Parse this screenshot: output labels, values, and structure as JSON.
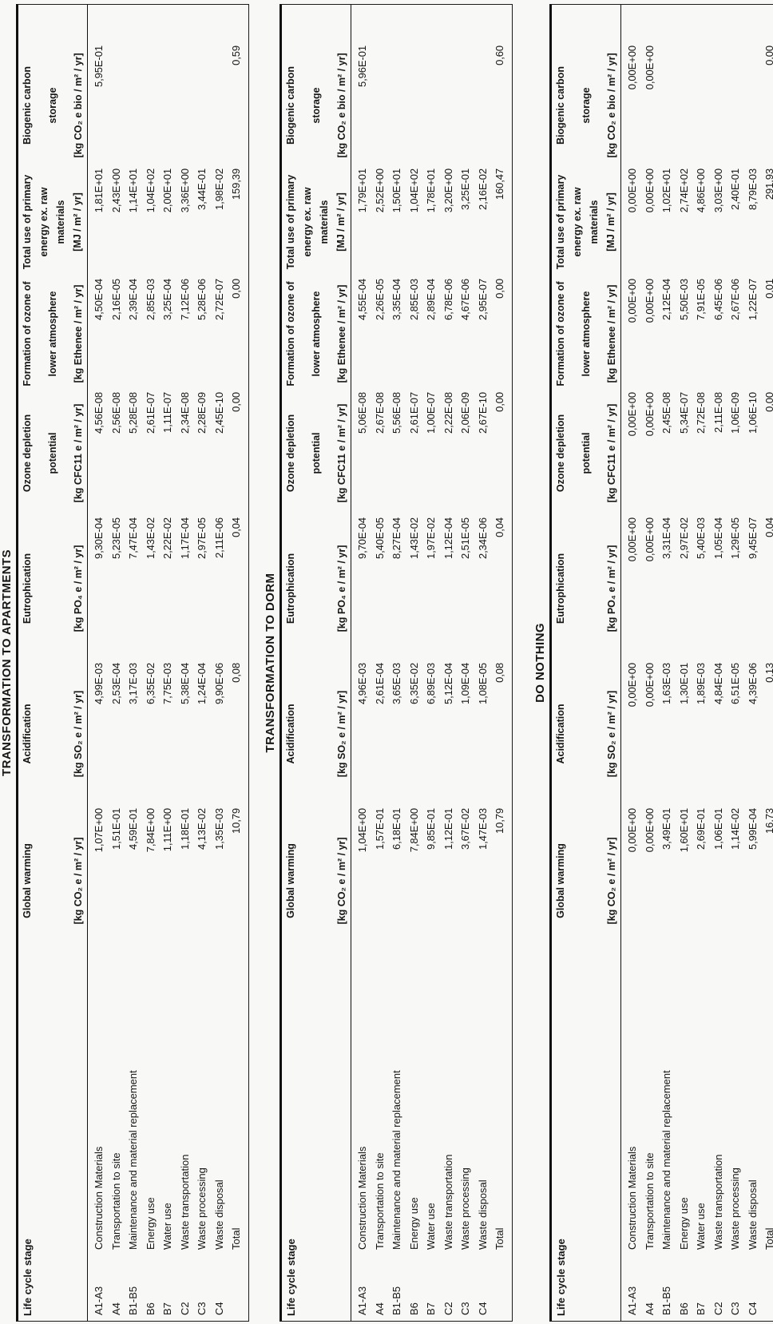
{
  "page": {
    "background": "#f8f8f6",
    "text_color": "#161616"
  },
  "columns": {
    "stage": "Life cycle stage",
    "impacts": [
      {
        "id": "global-warming",
        "lines": [
          "Global warming"
        ],
        "units": "[kg CO₂ e / m² / yr]"
      },
      {
        "id": "acidification",
        "lines": [
          "Acidification"
        ],
        "units": "[kg SO₂ e / m² / yr]"
      },
      {
        "id": "eutrophication",
        "lines": [
          "Eutrophication"
        ],
        "units": "[kg PO₄ e / m² / yr]"
      },
      {
        "id": "ozone-depletion",
        "lines": [
          "Ozone depletion",
          "potential"
        ],
        "units": "[kg CFC11 e / m² / yr]"
      },
      {
        "id": "ozone-formation",
        "lines": [
          "Formation of ozone of",
          "lower atmosphere"
        ],
        "units": "[kg Ethenee / m² / yr]"
      },
      {
        "id": "primary-energy",
        "lines": [
          "Total use of primary",
          "energy ex. raw",
          "materials"
        ],
        "units": "[MJ / m² / yr]"
      },
      {
        "id": "biogenic-carbon",
        "lines": [
          "Biogenic carbon",
          "storage"
        ],
        "units": "[kg CO₂ e bio / m² / yr]"
      }
    ]
  },
  "tables": [
    {
      "title": "TRANSFORMATION TO APARTMENTS",
      "rows": [
        {
          "code": "A1-A3",
          "label": "Construction Materials",
          "values": [
            "1,07E+00",
            "4,99E-03",
            "9,30E-04",
            "4,56E-08",
            "4,50E-04",
            "1,81E+01",
            "5,95E-01"
          ]
        },
        {
          "code": "A4",
          "label": "Transportation to site",
          "values": [
            "1,51E-01",
            "2,53E-04",
            "5,23E-05",
            "2,56E-08",
            "2,16E-05",
            "2,43E+00",
            ""
          ]
        },
        {
          "code": "B1-B5",
          "label": "Maintenance and material replacement",
          "values": [
            "4,59E-01",
            "3,17E-03",
            "7,47E-04",
            "5,28E-08",
            "2,39E-04",
            "1,14E+01",
            ""
          ]
        },
        {
          "code": "B6",
          "label": "Energy use",
          "values": [
            "7,84E+00",
            "6,35E-02",
            "1,43E-02",
            "2,61E-07",
            "2,85E-03",
            "1,04E+02",
            ""
          ]
        },
        {
          "code": "B7",
          "label": "Water use",
          "values": [
            "1,11E+00",
            "7,75E-03",
            "2,22E-02",
            "1,11E-07",
            "3,25E-04",
            "2,00E+01",
            ""
          ]
        },
        {
          "code": "C2",
          "label": "Waste transportation",
          "values": [
            "1,18E-01",
            "5,38E-04",
            "1,17E-04",
            "2,34E-08",
            "7,12E-06",
            "3,36E+00",
            ""
          ]
        },
        {
          "code": "C3",
          "label": "Waste processing",
          "values": [
            "4,13E-02",
            "1,24E-04",
            "2,97E-05",
            "2,28E-09",
            "5,28E-06",
            "3,44E-01",
            ""
          ]
        },
        {
          "code": "C4",
          "label": "Waste disposal",
          "values": [
            "1,35E-03",
            "9,90E-06",
            "2,11E-06",
            "2,45E-10",
            "2,72E-07",
            "1,98E-02",
            ""
          ]
        },
        {
          "code": "",
          "label": "Total",
          "values": [
            "10,79",
            "0,08",
            "0,04",
            "0,00",
            "0,00",
            "159,39",
            "0,59"
          ]
        }
      ]
    },
    {
      "title": "TRANSFORMATION TO DORM",
      "rows": [
        {
          "code": "A1-A3",
          "label": "Construction Materials",
          "values": [
            "1,04E+00",
            "4,96E-03",
            "9,70E-04",
            "5,06E-08",
            "4,55E-04",
            "1,79E+01",
            "5,96E-01"
          ]
        },
        {
          "code": "A4",
          "label": "Transportation to site",
          "values": [
            "1,57E-01",
            "2,61E-04",
            "5,40E-05",
            "2,67E-08",
            "2,26E-05",
            "2,52E+00",
            ""
          ]
        },
        {
          "code": "B1-B5",
          "label": "Maintenance and material replacement",
          "values": [
            "6,18E-01",
            "3,65E-03",
            "8,27E-04",
            "5,56E-08",
            "3,35E-04",
            "1,50E+01",
            ""
          ]
        },
        {
          "code": "B6",
          "label": "Energy use",
          "values": [
            "7,84E+00",
            "6,35E-02",
            "1,43E-02",
            "2,61E-07",
            "2,85E-03",
            "1,04E+02",
            ""
          ]
        },
        {
          "code": "B7",
          "label": "Water use",
          "values": [
            "9,85E-01",
            "6,89E-03",
            "1,97E-02",
            "1,00E-07",
            "2,89E-04",
            "1,78E+01",
            ""
          ]
        },
        {
          "code": "C2",
          "label": "Waste transportation",
          "values": [
            "1,12E-01",
            "5,12E-04",
            "1,12E-04",
            "2,22E-08",
            "6,78E-06",
            "3,20E+00",
            ""
          ]
        },
        {
          "code": "C3",
          "label": "Waste processing",
          "values": [
            "3,67E-02",
            "1,09E-04",
            "2,51E-05",
            "2,06E-09",
            "4,67E-06",
            "3,25E-01",
            ""
          ]
        },
        {
          "code": "C4",
          "label": "Waste disposal",
          "values": [
            "1,47E-03",
            "1,08E-05",
            "2,34E-06",
            "2,67E-10",
            "2,95E-07",
            "2,16E-02",
            ""
          ]
        },
        {
          "code": "",
          "label": "Total",
          "values": [
            "10,79",
            "0,08",
            "0,04",
            "0,00",
            "0,00",
            "160,47",
            "0,60"
          ]
        }
      ]
    },
    {
      "title": "DO NOTHING",
      "rows": [
        {
          "code": "A1-A3",
          "label": "Construction Materials",
          "values": [
            "0,00E+00",
            "0,00E+00",
            "0,00E+00",
            "0,00E+00",
            "0,00E+00",
            "0,00E+00",
            "0,00E+00"
          ]
        },
        {
          "code": "A4",
          "label": "Transportation to site",
          "values": [
            "0,00E+00",
            "0,00E+00",
            "0,00E+00",
            "0,00E+00",
            "0,00E+00",
            "0,00E+00",
            "0,00E+00"
          ]
        },
        {
          "code": "B1-B5",
          "label": "Maintenance and material replacement",
          "values": [
            "3,49E-01",
            "1,63E-03",
            "3,31E-04",
            "2,45E-08",
            "2,12E-04",
            "1,02E+01",
            ""
          ]
        },
        {
          "code": "B6",
          "label": "Energy use",
          "values": [
            "1,60E+01",
            "1,30E-01",
            "2,97E-02",
            "5,34E-07",
            "5,50E-03",
            "2,74E+02",
            ""
          ]
        },
        {
          "code": "B7",
          "label": "Water use",
          "values": [
            "2,69E-01",
            "1,89E-03",
            "5,40E-03",
            "2,72E-08",
            "7,91E-05",
            "4,86E+00",
            ""
          ]
        },
        {
          "code": "C2",
          "label": "Waste transportation",
          "values": [
            "1,06E-01",
            "4,84E-04",
            "1,05E-04",
            "2,11E-08",
            "6,45E-06",
            "3,03E+00",
            ""
          ]
        },
        {
          "code": "C3",
          "label": "Waste processing",
          "values": [
            "1,14E-02",
            "6,51E-05",
            "1,29E-05",
            "1,06E-09",
            "2,67E-06",
            "2,40E-01",
            ""
          ]
        },
        {
          "code": "C4",
          "label": "Waste disposal",
          "values": [
            "5,99E-04",
            "4,39E-06",
            "9,45E-07",
            "1,06E-10",
            "1,22E-07",
            "8,79E-03",
            ""
          ]
        },
        {
          "code": "",
          "label": "Total",
          "values": [
            "16,73",
            "0,13",
            "0,04",
            "0,00",
            "0,01",
            "291,93",
            "0,00"
          ]
        }
      ]
    }
  ]
}
